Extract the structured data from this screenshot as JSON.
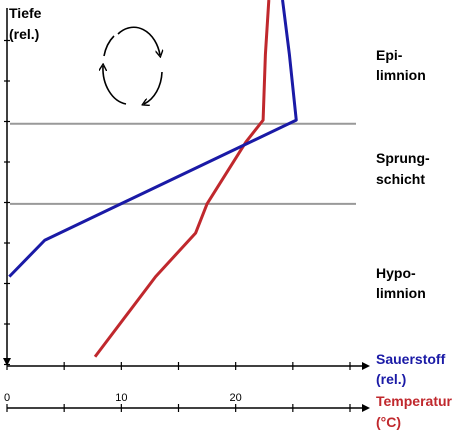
{
  "chart_data": {
    "type": "line",
    "title": "",
    "ylabel": "Tiefe (rel.)",
    "ylabel_lines": [
      "Tiefe",
      "(rel.)"
    ],
    "y_direction": "depth increases downward, no numeric ticks",
    "ylim": [
      0,
      10
    ],
    "x_axes": [
      {
        "name": "Sauerstoff",
        "label_lines": [
          "Sauerstoff",
          "(rel.)"
        ],
        "color": "#1a1aa6",
        "ticks": [],
        "range": [
          0,
          30
        ]
      },
      {
        "name": "Temperatur",
        "label_lines": [
          "Temperatur",
          "(°C)"
        ],
        "color": "#c0282d",
        "ticks": [
          "0",
          "10",
          "20"
        ],
        "range": [
          0,
          30
        ]
      }
    ],
    "series": [
      {
        "name": "Sauerstoff",
        "color": "#1a1aa6",
        "x": [
          24.1,
          24.7,
          25.3,
          3.3,
          0.2
        ],
        "y": [
          0,
          1.5,
          3.3,
          6.6,
          7.6
        ]
      },
      {
        "name": "Temperatur",
        "color": "#c0282d",
        "x": [
          22.9,
          22.6,
          22.4,
          20.9,
          17.5,
          16.5,
          13.0,
          7.7
        ],
        "y": [
          0,
          1.5,
          3.3,
          3.9,
          5.6,
          6.4,
          7.6,
          9.8
        ]
      }
    ],
    "layer_boundaries_y": [
      3.4,
      5.6
    ],
    "layers": [
      {
        "lines": [
          "Epi-",
          "limnion"
        ]
      },
      {
        "lines": [
          "Sprung-",
          "schicht"
        ]
      },
      {
        "lines": [
          "Hypo-",
          "limnion"
        ]
      }
    ],
    "annotation": "circulation arrows (circular) in Epilimnion",
    "colors": {
      "axis": "#000000",
      "boundary": "#999999"
    }
  }
}
